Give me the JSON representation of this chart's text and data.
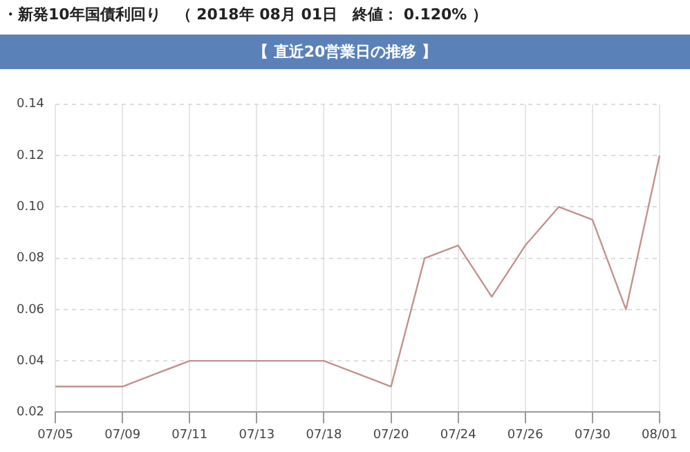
{
  "chart_data": {
    "type": "line",
    "title": "・新発10年国債利回り　（ 2018年 08月 01日　終値： 0.120% ）",
    "subtitle": "【 直近20営業日の推移 】",
    "categories": [
      "07/05",
      null,
      "07/09",
      null,
      "07/11",
      null,
      "07/13",
      null,
      "07/18",
      null,
      "07/20",
      null,
      "07/24",
      null,
      "07/26",
      null,
      "07/30",
      null,
      "08/01"
    ],
    "series": [
      {
        "color": "#c4918c",
        "values": [
          0.03,
          0.03,
          0.03,
          0.035,
          0.04,
          0.04,
          0.04,
          0.04,
          0.04,
          0.035,
          0.03,
          0.08,
          0.085,
          0.065,
          0.085,
          0.1,
          0.095,
          0.06,
          0.12
        ]
      }
    ],
    "ylim": [
      0.02,
      0.14
    ],
    "yticks": [
      0.02,
      0.04,
      0.06,
      0.08,
      {
        "value": 0.1,
        "label": "0.10"
      },
      0.12,
      0.14
    ],
    "grid": true,
    "legend": false,
    "marker": "none",
    "line_style": "solid"
  }
}
